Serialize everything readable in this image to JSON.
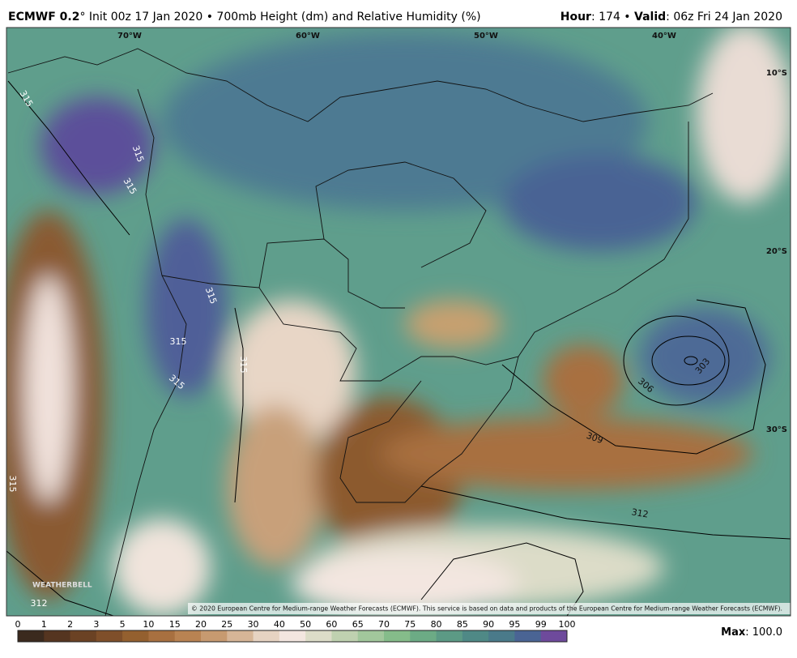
{
  "header": {
    "model": "ECMWF 0.2",
    "title": "° Init 00z 17 Jan 2020 • 700mb Height (dm) and Relative Humidity (%)",
    "hour_label": "Hour",
    "hour": ": 174 • ",
    "valid_label": "Valid",
    "valid": ": 06z Fri 24 Jan 2020"
  },
  "map": {
    "longitudes": [
      "70°W",
      "60°W",
      "50°W",
      "40°W"
    ],
    "latitudes": [
      "10°S",
      "20°S",
      "30°S"
    ],
    "contour_labels": [
      "315",
      "315",
      "315",
      "315",
      "315",
      "315",
      "315",
      "315",
      "312",
      "309",
      "312",
      "306",
      "303"
    ],
    "copyright": "© 2020 European Centre for Medium-range Weather Forecasts (ECMWF). This service is based on data and products of the European Centre for Medium-range Weather Forecasts (ECMWF).",
    "logo": "WEATHERBELL"
  },
  "colorbar": {
    "ticks": [
      0,
      1,
      2,
      3,
      5,
      10,
      15,
      20,
      25,
      30,
      40,
      50,
      60,
      65,
      70,
      75,
      80,
      85,
      90,
      95,
      99,
      100
    ],
    "colors": [
      "#3b2a1e",
      "#553520",
      "#6b4224",
      "#7f4f2a",
      "#94602f",
      "#a87040",
      "#b98352",
      "#c79a70",
      "#d6b597",
      "#e6d3c2",
      "#f3e6e0",
      "#dcdcc8",
      "#bfd1b0",
      "#a2c79c",
      "#85bc8a",
      "#6cab85",
      "#5c9a85",
      "#4f8986",
      "#4a7a8a",
      "#4a6494",
      "#6e4a9c"
    ]
  },
  "footer": {
    "max_label": "Max",
    "max": ": 100.0"
  }
}
